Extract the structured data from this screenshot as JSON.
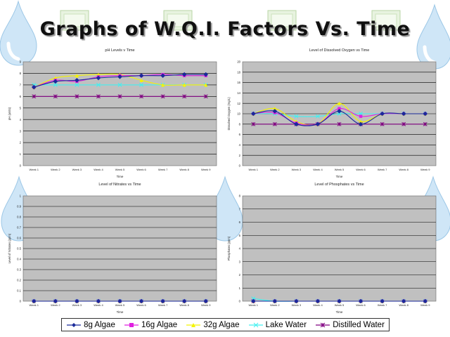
{
  "title": "Graphs of W.Q.I. Factors Vs. Time",
  "colors": {
    "8g Algae": "#1a2a9a",
    "16g Algae": "#e020e0",
    "32g Algae": "#f4f400",
    "Lake Water": "#40f0f0",
    "Distilled Water": "#800080",
    "plot_bg": "#c0c0c0"
  },
  "legend": [
    "8g Algae",
    "16g Algae",
    "32g Algae",
    "Lake Water",
    "Distilled Water"
  ],
  "chart_data": [
    {
      "type": "line",
      "title": "pH Levels v Time",
      "xlabel": "Time",
      "ylabel": "pH (units)",
      "ylim": [
        0,
        9
      ],
      "yticks": [
        "0",
        "1",
        "2",
        "3",
        "4",
        "5",
        "6",
        "7",
        "8",
        "9"
      ],
      "categories": [
        "Week 1",
        "Week 2",
        "Week 3",
        "Week 4",
        "Week 5",
        "Week 6",
        "Week 7",
        "Week 8",
        "Week 9"
      ],
      "series": [
        {
          "name": "8g Algae",
          "values": [
            6.8,
            7.3,
            7.4,
            7.6,
            7.7,
            7.8,
            7.8,
            7.9,
            7.9
          ]
        },
        {
          "name": "16g Algae",
          "values": [
            6.8,
            7.4,
            7.3,
            7.7,
            7.8,
            7.8,
            7.9,
            7.8,
            7.8
          ]
        },
        {
          "name": "32g Algae",
          "values": [
            6.8,
            7.6,
            7.8,
            7.9,
            7.9,
            7.4,
            7.0,
            7.0,
            7.0
          ]
        },
        {
          "name": "Lake Water",
          "values": [
            7.0,
            7.0,
            7.0,
            7.0,
            7.0,
            7.0,
            7.0,
            7.0,
            7.0
          ]
        },
        {
          "name": "Distilled Water",
          "values": [
            6.0,
            6.0,
            6.0,
            6.0,
            6.0,
            6.0,
            6.0,
            6.0,
            6.0
          ]
        }
      ]
    },
    {
      "type": "line",
      "title": "Level of Dissolved Oxygen vs Time",
      "xlabel": "Time",
      "ylabel": "Dissolved Oxygen (mg/L)",
      "ylim": [
        0,
        20
      ],
      "yticks": [
        "0",
        "2",
        "4",
        "6",
        "8",
        "10",
        "12",
        "14",
        "16",
        "18",
        "20"
      ],
      "categories": [
        "Week 1",
        "Week 2",
        "Week 3",
        "Week 4",
        "Week 5",
        "Week 6",
        "Week 7",
        "Week 8",
        "Week 9"
      ],
      "series": [
        {
          "name": "8g Algae",
          "values": [
            10,
            10.5,
            8,
            8,
            10.5,
            8,
            10,
            10,
            10
          ]
        },
        {
          "name": "16g Algae",
          "values": [
            10,
            10.2,
            8.2,
            8,
            11,
            9.5,
            10,
            10,
            10
          ]
        },
        {
          "name": "32g Algae",
          "values": [
            10,
            11,
            8.5,
            8,
            12,
            8.5,
            10,
            10,
            10
          ]
        },
        {
          "name": "Lake Water",
          "values": [
            10,
            10,
            9.5,
            9.5,
            10,
            10,
            10,
            10,
            10
          ]
        },
        {
          "name": "Distilled Water",
          "values": [
            8,
            8,
            8,
            8,
            8,
            8,
            8,
            8,
            8
          ]
        }
      ]
    },
    {
      "type": "line",
      "title": "Level of Nitrates vs Time",
      "xlabel": "Time",
      "ylabel": "Level of Nitrates (ppm)",
      "ylim": [
        0,
        1
      ],
      "yticks": [
        "0",
        "0.1",
        "0.2",
        "0.3",
        "0.4",
        "0.5",
        "0.6",
        "0.7",
        "0.8",
        "0.9",
        "1"
      ],
      "categories": [
        "Week 1",
        "Week 2",
        "Week 3",
        "Week 4",
        "Week 5",
        "Week 6",
        "Week 7",
        "Week 8",
        "Week 9"
      ],
      "series": [
        {
          "name": "8g Algae",
          "values": [
            0,
            0,
            0,
            0,
            0,
            0,
            0,
            0,
            0
          ]
        },
        {
          "name": "16g Algae",
          "values": [
            0,
            0,
            0,
            0,
            0,
            0,
            0,
            0,
            0
          ]
        },
        {
          "name": "32g Algae",
          "values": [
            0,
            0,
            0,
            0,
            0,
            0,
            0,
            0,
            0
          ]
        },
        {
          "name": "Lake Water",
          "values": [
            0,
            0,
            0,
            0,
            0,
            0,
            0,
            0,
            0
          ]
        },
        {
          "name": "Distilled Water",
          "values": [
            0,
            0,
            0,
            0,
            0,
            0,
            0,
            0,
            0
          ]
        }
      ]
    },
    {
      "type": "line",
      "title": "Level of Phosphates vs Time",
      "xlabel": "Time",
      "ylabel": "Phosphates (ppm)",
      "ylim": [
        0,
        8
      ],
      "yticks": [
        "0",
        "1",
        "2",
        "3",
        "4",
        "5",
        "6",
        "7",
        "8"
      ],
      "categories": [
        "Week 1",
        "Week 2",
        "Week 3",
        "Week 4",
        "Week 5",
        "Week 6",
        "Week 7",
        "Week 8",
        "Week 9"
      ],
      "series": [
        {
          "name": "8g Algae",
          "values": [
            0,
            0,
            0,
            0,
            0,
            0,
            0,
            0,
            0
          ]
        },
        {
          "name": "16g Algae",
          "values": [
            0,
            0,
            0,
            0,
            0,
            0,
            0,
            0,
            0
          ]
        },
        {
          "name": "32g Algae",
          "values": [
            0,
            0,
            0,
            0,
            0,
            0,
            0,
            0,
            0
          ]
        },
        {
          "name": "Lake Water",
          "values": [
            0.2,
            0,
            0,
            0,
            0,
            0,
            0,
            0,
            0
          ]
        },
        {
          "name": "Distilled Water",
          "values": [
            0,
            0,
            0,
            0,
            0,
            0,
            0,
            0,
            0
          ]
        }
      ]
    }
  ]
}
